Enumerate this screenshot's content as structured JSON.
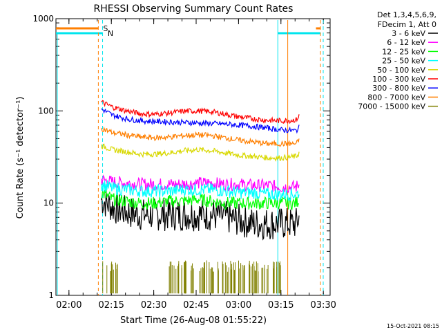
{
  "chart_data": {
    "type": "line",
    "title": "RHESSI Observing Summary Count Rates",
    "xlabel": "Start Time (26-Aug-08 01:55:22)",
    "ylabel": "Count Rate (s⁻¹ detector⁻¹)",
    "yscale": "log",
    "ylim": [
      1,
      1000
    ],
    "xlim_minutes_from_start": [
      0,
      97
    ],
    "x_tick_labels": [
      "02:00",
      "02:15",
      "02:30",
      "02:45",
      "03:00",
      "03:15",
      "03:30"
    ],
    "x_tick_minutes": [
      4.6,
      19.6,
      34.6,
      49.6,
      64.6,
      79.6,
      94.6
    ],
    "y_tick_labels": [
      "1",
      "10",
      "100",
      "1000"
    ],
    "y_tick_values": [
      1,
      10,
      100,
      1000
    ],
    "legend_header": [
      "Det 1,3,4,5,6,9,",
      "FDecim 1, Att 0"
    ],
    "legend_placement": "right",
    "footer_date": "15-Oct-2021 08:15",
    "markers": [
      {
        "label": "S",
        "color": "#ff7f00"
      },
      {
        "label": "N",
        "color": "#00e5ee"
      }
    ],
    "series": [
      {
        "name": "3 - 6 keV",
        "color": "#000000",
        "x": [
          16,
          20,
          25,
          30,
          35,
          40,
          45,
          50,
          55,
          60,
          65,
          70,
          75,
          80,
          85,
          86
        ],
        "y": [
          11,
          9,
          8,
          7.5,
          7.5,
          7.5,
          7.5,
          7.5,
          7.5,
          7,
          6.5,
          6,
          6,
          6,
          6,
          7
        ]
      },
      {
        "name": "6 - 12 keV",
        "color": "#ff00ff",
        "x": [
          16,
          20,
          25,
          30,
          35,
          40,
          45,
          50,
          55,
          60,
          65,
          70,
          75,
          80,
          85,
          86
        ],
        "y": [
          18,
          17,
          16.5,
          16,
          16,
          16,
          16,
          16.5,
          16.5,
          16,
          16,
          15.5,
          15.5,
          15,
          15,
          16
        ]
      },
      {
        "name": "12 - 25 keV",
        "color": "#00ff00",
        "x": [
          16,
          20,
          25,
          30,
          35,
          40,
          45,
          50,
          55,
          60,
          65,
          70,
          75,
          80,
          85,
          86
        ],
        "y": [
          13,
          11,
          10.5,
          10,
          10,
          10.5,
          10.5,
          11,
          10.5,
          10,
          10,
          10,
          10,
          10,
          10,
          11
        ]
      },
      {
        "name": "25 - 50 keV",
        "color": "#00ffff",
        "x": [
          16,
          20,
          25,
          30,
          35,
          40,
          45,
          50,
          55,
          60,
          65,
          70,
          75,
          80,
          85,
          86
        ],
        "y": [
          16,
          14.5,
          14,
          13.5,
          13.5,
          13.5,
          14,
          14,
          14,
          13.5,
          13,
          13,
          12.5,
          12.5,
          12.5,
          13
        ]
      },
      {
        "name": "50 - 100 keV",
        "color": "#d8d800",
        "x": [
          16,
          20,
          25,
          30,
          35,
          40,
          45,
          50,
          55,
          60,
          65,
          70,
          75,
          80,
          85,
          86
        ],
        "y": [
          42,
          38,
          36,
          34,
          34,
          35,
          37,
          38,
          37,
          35,
          33,
          32,
          31,
          31,
          32,
          35
        ]
      },
      {
        "name": "100 - 300 keV",
        "color": "#ff0000",
        "x": [
          16,
          20,
          25,
          30,
          35,
          40,
          45,
          50,
          55,
          60,
          65,
          70,
          75,
          80,
          85,
          86
        ],
        "y": [
          125,
          110,
          100,
          93,
          92,
          95,
          99,
          100,
          98,
          92,
          86,
          82,
          79,
          78,
          80,
          88
        ]
      },
      {
        "name": "300 - 800 keV",
        "color": "#0000ff",
        "x": [
          16,
          20,
          25,
          30,
          35,
          40,
          45,
          50,
          55,
          60,
          65,
          70,
          75,
          80,
          85,
          86
        ],
        "y": [
          105,
          90,
          82,
          78,
          77,
          76,
          75,
          74,
          73,
          72,
          70,
          68,
          65,
          62,
          61,
          66
        ]
      },
      {
        "name": "800 - 7000 keV",
        "color": "#ff7f00",
        "x": [
          16,
          20,
          25,
          30,
          35,
          40,
          45,
          50,
          55,
          60,
          65,
          70,
          75,
          80,
          85,
          86
        ],
        "y": [
          65,
          58,
          55,
          52,
          51,
          52,
          54,
          55,
          54,
          51,
          48,
          46,
          44,
          44,
          44,
          48
        ]
      },
      {
        "name": "7000 - 15000 keV",
        "color": "#808000",
        "x": [
          16,
          17,
          18,
          19,
          40,
          45,
          50,
          55,
          60,
          65,
          70,
          75
        ],
        "y": [
          2,
          2,
          2,
          2,
          2,
          2,
          2,
          2,
          2,
          2,
          2,
          2
        ]
      }
    ]
  }
}
